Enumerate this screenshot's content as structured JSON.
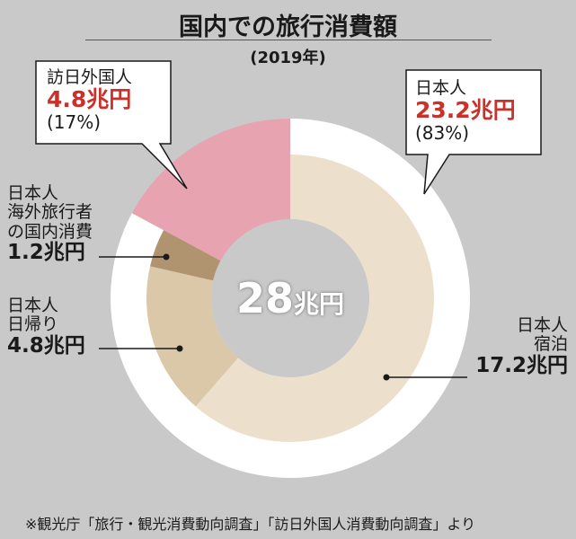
{
  "title": "国内での旅行消費額",
  "subtitle": "(2019年)",
  "source": "※観光庁「旅行・観光消費動向調査」「訪日外国人消費動向調査」より",
  "chart_data": {
    "type": "pie",
    "unit": "兆円",
    "total": {
      "value": "28",
      "unit": "兆円"
    },
    "outer_ring": [
      {
        "name": "日本人",
        "value": 23.2,
        "value_text": "23.2兆円",
        "pct_text": "(83%)",
        "color": "#ffffff"
      },
      {
        "name": "訪日外国人",
        "value": 4.8,
        "value_text": "4.8兆円",
        "pct_text": "(17%)",
        "color": "#e8a3b1"
      }
    ],
    "inner_ring": [
      {
        "name": "日本人\n宿泊",
        "value": 17.2,
        "value_text": "17.2兆円",
        "color": "#ece0cd"
      },
      {
        "name": "日本人\n日帰り",
        "value": 4.8,
        "value_text": "4.8兆円",
        "color": "#dbc8a8"
      },
      {
        "name": "日本人\n海外旅行者\nの国内消費",
        "value": 1.2,
        "value_text": "1.2兆円",
        "color": "#b09470"
      },
      {
        "name": "訪日外国人",
        "value": 4.8,
        "color": "#e8a3b1"
      }
    ]
  }
}
